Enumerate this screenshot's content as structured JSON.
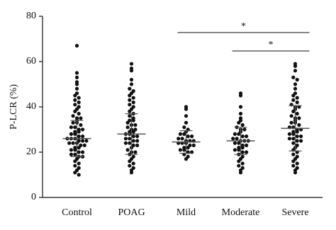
{
  "chart_data": {
    "type": "beeswarm",
    "ylabel": "P-LCR (%)",
    "ylim": [
      0,
      80
    ],
    "yticks": [
      0,
      20,
      40,
      60,
      80
    ],
    "color": "#111111",
    "series": [
      {
        "name": "Control",
        "mean": 26,
        "sd": 8,
        "values": [
          67,
          55,
          53,
          51,
          50,
          48,
          46,
          45,
          44,
          43,
          42,
          41,
          40,
          39,
          38,
          37,
          36,
          35,
          35,
          34,
          33,
          33,
          32,
          31,
          31,
          30,
          30,
          29,
          29,
          28,
          28,
          27,
          27,
          26,
          26,
          26,
          25,
          25,
          25,
          24,
          24,
          24,
          23,
          23,
          22,
          22,
          21,
          21,
          20,
          20,
          19,
          19,
          18,
          18,
          17,
          16,
          15,
          14,
          13,
          12,
          11,
          10
        ]
      },
      {
        "name": "POAG",
        "mean": 28,
        "sd": 9,
        "values": [
          59,
          57,
          56,
          52,
          50,
          48,
          47,
          46,
          45,
          44,
          43,
          42,
          41,
          40,
          39,
          38,
          37,
          36,
          35,
          34,
          34,
          33,
          32,
          32,
          31,
          30,
          30,
          29,
          29,
          28,
          28,
          27,
          27,
          26,
          26,
          25,
          25,
          24,
          24,
          23,
          23,
          22,
          21,
          20,
          20,
          19,
          18,
          17,
          16,
          15,
          14,
          13,
          12,
          11
        ]
      },
      {
        "name": "Mild",
        "mean": 24.5,
        "sd": 5,
        "values": [
          40,
          39,
          36,
          33,
          31,
          30,
          29,
          28,
          28,
          27,
          27,
          26,
          26,
          25,
          25,
          25,
          24,
          24,
          24,
          23,
          23,
          22,
          22,
          21,
          21,
          20,
          20,
          19,
          18,
          17
        ]
      },
      {
        "name": "Moderate",
        "mean": 25,
        "sd": 6,
        "values": [
          46,
          45,
          40,
          37,
          35,
          34,
          33,
          32,
          31,
          30,
          30,
          29,
          28,
          28,
          27,
          27,
          26,
          26,
          25,
          25,
          25,
          24,
          24,
          23,
          23,
          22,
          22,
          21,
          21,
          20,
          20,
          19,
          18,
          17,
          16,
          15,
          14,
          13,
          12,
          11
        ]
      },
      {
        "name": "Severe",
        "mean": 30.5,
        "sd": 10,
        "values": [
          59,
          58,
          56,
          53,
          52,
          50,
          48,
          46,
          45,
          44,
          43,
          42,
          41,
          40,
          40,
          39,
          38,
          37,
          36,
          35,
          35,
          34,
          33,
          33,
          32,
          31,
          31,
          30,
          30,
          29,
          29,
          28,
          28,
          27,
          27,
          26,
          26,
          25,
          25,
          24,
          23,
          22,
          21,
          20,
          19,
          18,
          17,
          16,
          15,
          14,
          13,
          12,
          11
        ]
      }
    ],
    "annotations": [
      {
        "text": "*",
        "from": "Mild",
        "to": "Severe"
      },
      {
        "text": "*",
        "from": "Moderate",
        "to": "Severe"
      }
    ]
  }
}
